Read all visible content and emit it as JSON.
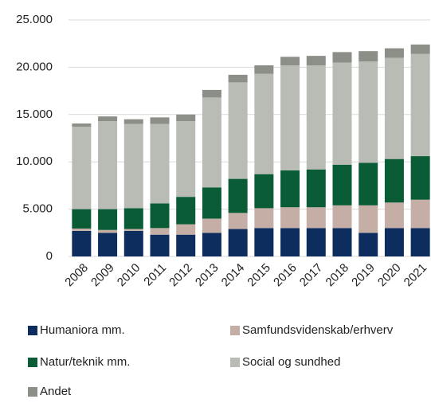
{
  "chart_data": {
    "type": "stacked_bar",
    "categories": [
      "2008",
      "2009",
      "2010",
      "2011",
      "2012",
      "2013",
      "2014",
      "2015",
      "2016",
      "2017",
      "2018",
      "2019",
      "2020",
      "2021"
    ],
    "series": [
      {
        "name": "Humaniora mm.",
        "color": "#0d2d5e",
        "values": [
          2700,
          2500,
          2700,
          2300,
          2300,
          2500,
          2900,
          3000,
          3000,
          3000,
          3000,
          2500,
          3000,
          3000
        ]
      },
      {
        "name": "Samfundsvidenskab/erhverv",
        "color": "#c4aea6",
        "values": [
          250,
          300,
          200,
          700,
          1100,
          1500,
          1700,
          2100,
          2200,
          2200,
          2400,
          2900,
          2700,
          3000
        ]
      },
      {
        "name": "Natur/teknik mm.",
        "color": "#0a5c36",
        "values": [
          2050,
          2200,
          2200,
          2600,
          2900,
          3300,
          3600,
          3600,
          3900,
          4000,
          4300,
          4500,
          4600,
          4600
        ]
      },
      {
        "name": "Social og sundhed",
        "color": "#b9bcb4",
        "values": [
          8700,
          9300,
          8900,
          8400,
          8000,
          9500,
          10200,
          10600,
          11100,
          11000,
          10800,
          10700,
          10700,
          10800
        ]
      },
      {
        "name": "Andet",
        "color": "#8c8e88",
        "values": [
          350,
          500,
          500,
          700,
          700,
          800,
          800,
          900,
          900,
          1000,
          1100,
          1100,
          1000,
          1000
        ]
      }
    ],
    "ylim": [
      0,
      25000
    ],
    "yticks": [
      0,
      {
        "value": 5000,
        "label": "5.000"
      },
      {
        "value": 10000,
        "label": "10.000"
      },
      {
        "value": 15000,
        "label": "15.000"
      },
      {
        "value": 20000,
        "label": "20.000"
      },
      {
        "value": 25000,
        "label": "25.000"
      }
    ],
    "grid": true
  }
}
